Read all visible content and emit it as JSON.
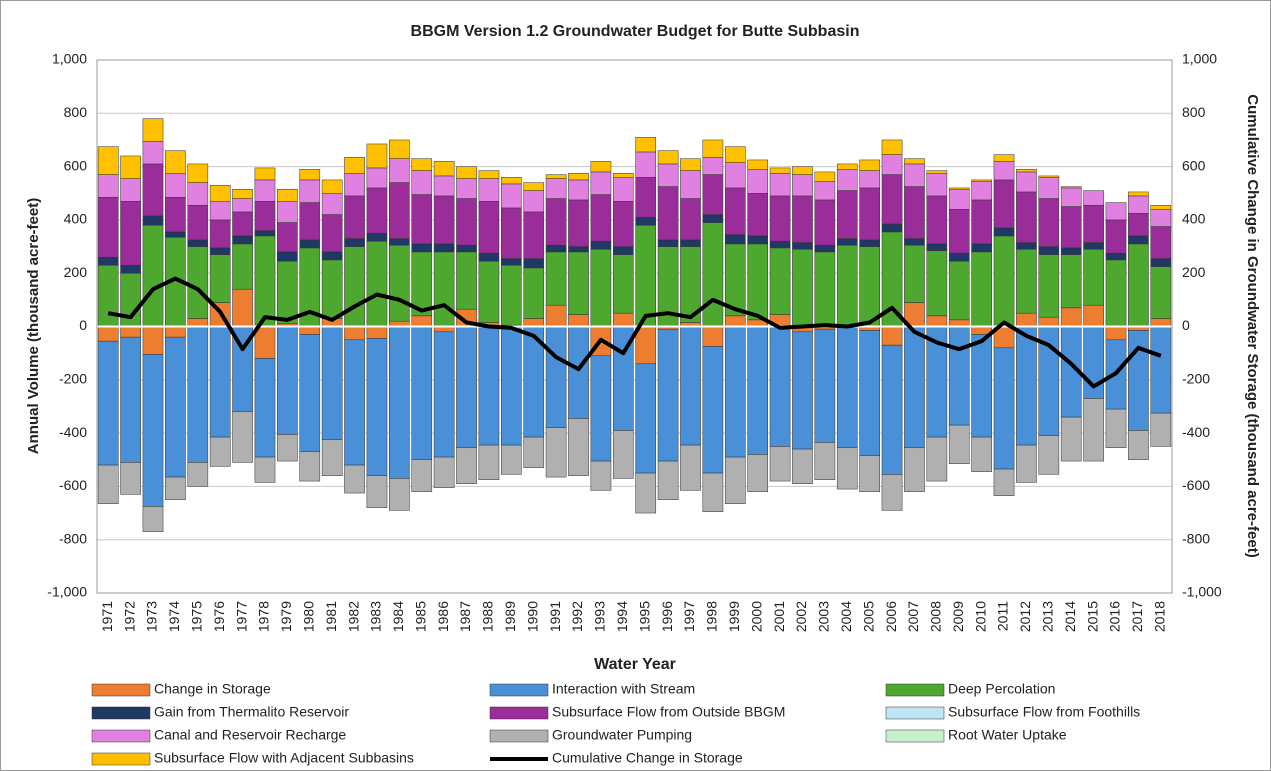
{
  "chart_data": {
    "type": "stacked_bar_line",
    "title": "BBGM Version 1.2 Groundwater Budget for Butte Subbasin",
    "x_label": "Water Year",
    "y_label": "Annual Volume (thousand acre-feet)",
    "y2_label": "Cumulative Change in Groundwater Storage (thousand acre-feet)",
    "categories": [
      "1971",
      "1972",
      "1973",
      "1974",
      "1975",
      "1976",
      "1977",
      "1978",
      "1979",
      "1980",
      "1981",
      "1982",
      "1983",
      "1984",
      "1985",
      "1986",
      "1987",
      "1988",
      "1989",
      "1990",
      "1991",
      "1992",
      "1993",
      "1994",
      "1995",
      "1996",
      "1997",
      "1998",
      "1999",
      "2000",
      "2001",
      "2002",
      "2003",
      "2004",
      "2005",
      "2006",
      "2007",
      "2008",
      "2009",
      "2010",
      "2011",
      "2012",
      "2013",
      "2014",
      "2015",
      "2016",
      "2017",
      "2018"
    ],
    "ylim": [
      -1000,
      1000
    ],
    "yticks": [
      {
        "value": -1000,
        "label": "-1,000"
      },
      -800,
      -600,
      -400,
      -200,
      0,
      200,
      400,
      600,
      800,
      {
        "value": 1000,
        "label": "1,000"
      }
    ],
    "y2lim": [
      -1000,
      1000
    ],
    "y2ticks": [
      {
        "value": -1000,
        "label": "-1,000"
      },
      -800,
      -600,
      -400,
      -200,
      0,
      200,
      400,
      600,
      800,
      {
        "value": 1000,
        "label": "1,000"
      }
    ],
    "grid": true,
    "legend": "bottom",
    "series": [
      {
        "name": "Change in Storage",
        "color": "#ed7d31",
        "values": [
          -55,
          -40,
          -105,
          -40,
          30,
          90,
          140,
          -120,
          10,
          -30,
          30,
          -50,
          -45,
          20,
          40,
          -20,
          65,
          15,
          5,
          30,
          80,
          45,
          -110,
          50,
          -140,
          -10,
          15,
          -75,
          40,
          25,
          45,
          -20,
          -10,
          5,
          -15,
          -70,
          90,
          40,
          25,
          -30,
          -80,
          50,
          35,
          70,
          80,
          -50,
          -15,
          30
        ]
      },
      {
        "name": "Interaction with Stream",
        "color": "#4a90d9",
        "values": [
          -465,
          -470,
          -570,
          -525,
          -510,
          -415,
          -320,
          -370,
          -405,
          -440,
          -425,
          -470,
          -515,
          -570,
          -500,
          -470,
          -455,
          -445,
          -445,
          -415,
          -380,
          -345,
          -395,
          -390,
          -410,
          -495,
          -445,
          -475,
          -490,
          -480,
          -450,
          -440,
          -425,
          -455,
          -470,
          -485,
          -455,
          -415,
          -370,
          -385,
          -455,
          -445,
          -410,
          -340,
          -270,
          -260,
          -375,
          -325
        ]
      },
      {
        "name": "Deep Percolation",
        "color": "#4ea72e",
        "values": [
          230,
          200,
          380,
          335,
          270,
          180,
          170,
          340,
          235,
          295,
          220,
          300,
          320,
          285,
          240,
          280,
          215,
          230,
          225,
          190,
          200,
          235,
          290,
          220,
          380,
          300,
          285,
          390,
          270,
          285,
          250,
          290,
          280,
          300,
          300,
          355,
          215,
          245,
          220,
          280,
          340,
          240,
          235,
          200,
          210,
          250,
          310,
          195
        ]
      },
      {
        "name": "Gain from Thermalito Reservoir",
        "color": "#1f3864",
        "values": [
          30,
          30,
          35,
          20,
          25,
          25,
          30,
          20,
          35,
          30,
          30,
          30,
          30,
          25,
          30,
          30,
          25,
          30,
          25,
          35,
          25,
          20,
          30,
          30,
          30,
          25,
          25,
          30,
          35,
          30,
          25,
          25,
          25,
          25,
          25,
          30,
          25,
          25,
          30,
          30,
          30,
          25,
          30,
          25,
          25,
          25,
          30,
          30
        ]
      },
      {
        "name": "Subsurface Flow from Outside BBGM",
        "color": "#9b2d9b",
        "values": [
          225,
          240,
          195,
          130,
          130,
          105,
          90,
          110,
          110,
          140,
          140,
          160,
          170,
          210,
          185,
          180,
          175,
          195,
          190,
          175,
          175,
          175,
          175,
          170,
          150,
          200,
          155,
          150,
          175,
          160,
          170,
          175,
          170,
          180,
          195,
          185,
          195,
          180,
          165,
          165,
          180,
          190,
          180,
          155,
          140,
          125,
          85,
          120
        ]
      },
      {
        "name": "Subsurface Flow from Foothills",
        "color": "#c0e4f5",
        "values": [
          0,
          0,
          0,
          0,
          0,
          0,
          0,
          0,
          0,
          0,
          0,
          0,
          0,
          0,
          0,
          0,
          0,
          0,
          0,
          0,
          0,
          0,
          0,
          0,
          0,
          0,
          0,
          0,
          0,
          0,
          0,
          0,
          0,
          0,
          0,
          0,
          0,
          0,
          0,
          0,
          0,
          0,
          0,
          0,
          0,
          0,
          0,
          0
        ]
      },
      {
        "name": "Canal and Reservoir Recharge",
        "color": "#e080e0",
        "values": [
          85,
          85,
          85,
          90,
          85,
          70,
          50,
          80,
          80,
          85,
          80,
          85,
          75,
          90,
          90,
          75,
          75,
          85,
          90,
          80,
          75,
          75,
          85,
          90,
          95,
          85,
          105,
          65,
          95,
          90,
          85,
          80,
          70,
          80,
          65,
          75,
          85,
          85,
          75,
          70,
          70,
          75,
          80,
          70,
          55,
          65,
          65,
          65
        ]
      },
      {
        "name": "Groundwater Pumping",
        "color": "#b0b0b0",
        "values": [
          -145,
          -120,
          -95,
          -85,
          -90,
          -110,
          -190,
          -95,
          -100,
          -110,
          -135,
          -105,
          -120,
          -120,
          -120,
          -115,
          -135,
          -130,
          -110,
          -115,
          -185,
          -215,
          -110,
          -180,
          -150,
          -145,
          -170,
          -145,
          -175,
          -140,
          -130,
          -130,
          -140,
          -155,
          -135,
          -135,
          -165,
          -165,
          -145,
          -130,
          -100,
          -140,
          -145,
          -165,
          -235,
          -145,
          -110,
          -125
        ]
      },
      {
        "name": "Root Water Uptake",
        "color": "#c6efce",
        "values": [
          0,
          0,
          0,
          0,
          0,
          0,
          0,
          0,
          0,
          0,
          0,
          0,
          0,
          0,
          0,
          0,
          0,
          0,
          0,
          0,
          0,
          0,
          0,
          0,
          0,
          0,
          0,
          0,
          0,
          0,
          0,
          0,
          0,
          0,
          0,
          0,
          0,
          0,
          0,
          0,
          0,
          0,
          0,
          0,
          0,
          0,
          0,
          0
        ]
      },
      {
        "name": "Subsurface Flow with Adjacent Subbasins",
        "color": "#ffc000",
        "values": [
          105,
          85,
          85,
          85,
          70,
          60,
          35,
          45,
          45,
          40,
          50,
          60,
          90,
          70,
          45,
          55,
          45,
          30,
          25,
          30,
          15,
          25,
          40,
          15,
          55,
          50,
          45,
          65,
          60,
          35,
          20,
          30,
          35,
          20,
          40,
          55,
          20,
          10,
          5,
          5,
          25,
          10,
          5,
          5,
          0,
          0,
          15,
          15
        ]
      },
      {
        "name": "Cumulative Change in Storage",
        "color": "#000000",
        "axis": "y2",
        "values": [
          50,
          35,
          140,
          180,
          140,
          55,
          -85,
          35,
          25,
          55,
          25,
          75,
          120,
          100,
          60,
          80,
          15,
          0,
          -5,
          -35,
          -115,
          -160,
          -50,
          -100,
          40,
          50,
          35,
          100,
          65,
          40,
          -5,
          0,
          5,
          0,
          15,
          70,
          -20,
          -60,
          -85,
          -55,
          15,
          -35,
          -70,
          -140,
          -225,
          -175,
          -80,
          -110
        ]
      }
    ]
  }
}
